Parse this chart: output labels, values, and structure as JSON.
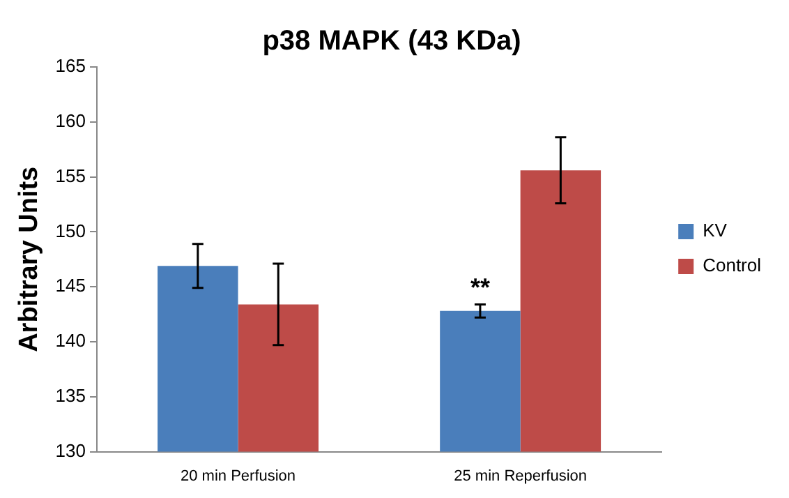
{
  "chart_data": {
    "type": "bar",
    "title": "p38 MAPK (43 KDa)",
    "ylabel": "Arbitrary Units",
    "categories": [
      "20 min Perfusion",
      "25 min Reperfusion"
    ],
    "series": [
      {
        "name": "KV",
        "color": "#4a7ebb",
        "values": [
          146.9,
          142.8
        ],
        "errors": [
          2,
          0.6
        ]
      },
      {
        "name": "Control",
        "color": "#be4b48",
        "values": [
          143.4,
          155.6
        ],
        "errors": [
          3.7,
          3
        ]
      }
    ],
    "ylim": [
      130,
      165
    ],
    "yticks": [
      130,
      135,
      140,
      145,
      150,
      155,
      160,
      165
    ],
    "grid": false,
    "legend": "right",
    "annotations": [
      {
        "text": "**",
        "x": "25 min Reperfusion",
        "y": 143.4
      }
    ]
  }
}
